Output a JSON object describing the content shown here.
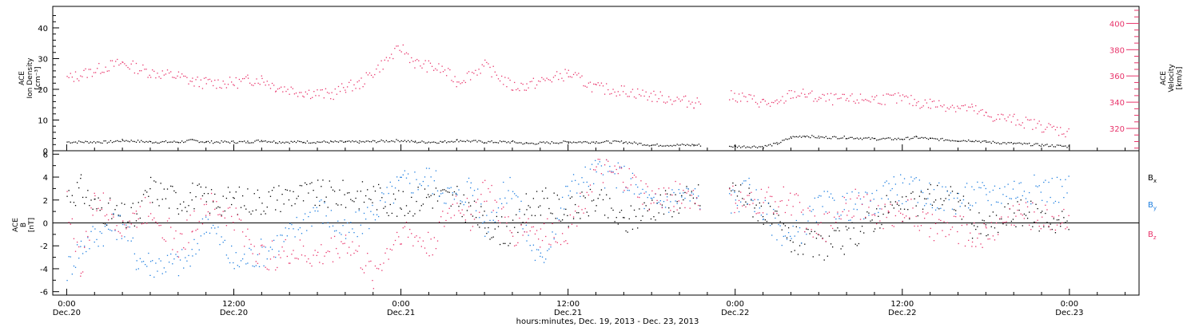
{
  "chart_data": [
    {
      "type": "scatter",
      "left_ylabel": [
        "ACE",
        "Ion Density",
        "[cm⁻³]"
      ],
      "right_ylabel": [
        "ACE",
        "Velocity",
        "[km/s]"
      ],
      "left_ylim": [
        0,
        47
      ],
      "right_ylim": [
        303,
        413
      ],
      "left_ticks": [
        "0",
        "10",
        "20",
        "30",
        "40"
      ],
      "right_ticks": [
        "320",
        "340",
        "360",
        "380",
        "400"
      ],
      "colors": {
        "density": "#000000",
        "velocity": "#e8336a"
      },
      "x_hours": [
        0,
        3,
        4,
        6,
        8,
        9,
        10,
        12,
        13,
        14,
        15,
        17,
        19,
        20,
        21,
        24,
        25,
        27,
        28,
        30,
        32,
        33,
        36,
        38,
        40,
        42,
        45,
        46,
        48,
        50,
        51,
        52,
        53,
        54,
        56,
        58,
        60,
        61,
        62,
        64,
        65,
        66,
        68,
        70,
        72
      ],
      "series": [
        {
          "name": "density",
          "y": [
            3,
            3,
            3.5,
            3,
            3,
            3.5,
            3,
            3,
            3,
            3.5,
            3,
            3,
            3,
            3,
            3,
            3.5,
            3,
            3,
            3.5,
            3,
            3,
            2.5,
            3,
            3,
            3,
            2,
            2,
            2,
            1.5,
            1.5,
            2.5,
            4.5,
            5,
            4.5,
            4.5,
            4,
            4,
            4.5,
            4,
            3.5,
            3.5,
            3,
            2.5,
            2,
            1.5
          ]
        },
        {
          "name": "velocity",
          "y": [
            358,
            368,
            370,
            363,
            360,
            356,
            355,
            355,
            357,
            358,
            352,
            348,
            346,
            352,
            354,
            382,
            370,
            365,
            356,
            368,
            352,
            353,
            362,
            351,
            349,
            345,
            340,
            343,
            345,
            340,
            338,
            347,
            346,
            343,
            342,
            343,
            343,
            340,
            339,
            337,
            335,
            330,
            327,
            322,
            317
          ]
        }
      ]
    },
    {
      "type": "scatter",
      "ylabel": [
        "ACE",
        "B",
        "[nT]"
      ],
      "ylim": [
        -6.3,
        6.3
      ],
      "yticks": [
        "-6",
        "-4",
        "-2",
        "0",
        "2",
        "4",
        "6"
      ],
      "zero_line": true,
      "x_hours": [
        0,
        1,
        2,
        4,
        5,
        6,
        8,
        9,
        10,
        12,
        14,
        16,
        18,
        20,
        22,
        24,
        26,
        28,
        29,
        30,
        32,
        33,
        34,
        36,
        38,
        40,
        42,
        44,
        46,
        48,
        49,
        50,
        52,
        54,
        56,
        58,
        59,
        60,
        62,
        64,
        65,
        66,
        68,
        70,
        72
      ],
      "series": [
        {
          "name": "Bx",
          "label": "B",
          "sub": "x",
          "color": "#000000",
          "y": [
            2.5,
            3,
            1.5,
            0.5,
            0.5,
            3,
            2,
            2.5,
            2,
            2,
            2,
            2.5,
            2.5,
            2.5,
            2.5,
            1.5,
            2.5,
            2,
            1,
            0,
            -1,
            1.5,
            2,
            1,
            2,
            0,
            1.5,
            2,
            2.5,
            3,
            2,
            1,
            -1.5,
            -2,
            -1.5,
            0.5,
            1.5,
            1,
            2.5,
            2,
            0,
            -0.5,
            1,
            0.5,
            0
          ]
        },
        {
          "name": "By",
          "label": "B",
          "sub": "y",
          "color": "#1f7fe0",
          "y": [
            -4,
            -2,
            -1,
            0,
            -3,
            -3.5,
            -3.5,
            -3,
            0.5,
            -3.5,
            -2.5,
            -1,
            1.5,
            -1,
            1,
            3.5,
            4,
            2,
            3.5,
            0,
            3.5,
            -1,
            -3.5,
            3,
            4.5,
            4,
            1.5,
            2.5,
            2,
            2,
            3,
            1,
            -1.5,
            1.5,
            1.5,
            1.5,
            3.5,
            3,
            2.5,
            2,
            2.5,
            2.5,
            3,
            3,
            3
          ]
        },
        {
          "name": "Bz",
          "label": "B",
          "sub": "z",
          "color": "#e8336a",
          "y": [
            2,
            -4,
            2,
            0,
            0.5,
            1.5,
            -2,
            0,
            1.5,
            0.5,
            -3,
            -2.5,
            -3,
            -1.5,
            -4.5,
            -0.5,
            -2,
            2,
            0.5,
            3,
            -1,
            0,
            -1,
            -0.5,
            4.5,
            4,
            2,
            2.5,
            2,
            2,
            1.5,
            2,
            2,
            -1,
            2,
            1,
            0.5,
            1.5,
            -0.5,
            -0.5,
            -1,
            -1,
            1,
            0.5,
            0.5
          ]
        }
      ]
    }
  ],
  "x_axis": {
    "ticks": [
      {
        "time": "0:00",
        "day": "Dec.20",
        "hours": 0
      },
      {
        "time": "12:00",
        "day": "Dec.20",
        "hours": 12
      },
      {
        "time": "0:00",
        "day": "Dec.21",
        "hours": 24
      },
      {
        "time": "12:00",
        "day": "Dec.21",
        "hours": 36
      },
      {
        "time": "0:00",
        "day": "Dec.22",
        "hours": 48
      },
      {
        "time": "12:00",
        "day": "Dec.22",
        "hours": 60
      },
      {
        "time": "0:00",
        "day": "Dec.23",
        "hours": 72
      }
    ],
    "range_hours": [
      -1,
      77
    ],
    "label": "hours:minutes, Dec. 19, 2013 - Dec. 23, 2013"
  }
}
